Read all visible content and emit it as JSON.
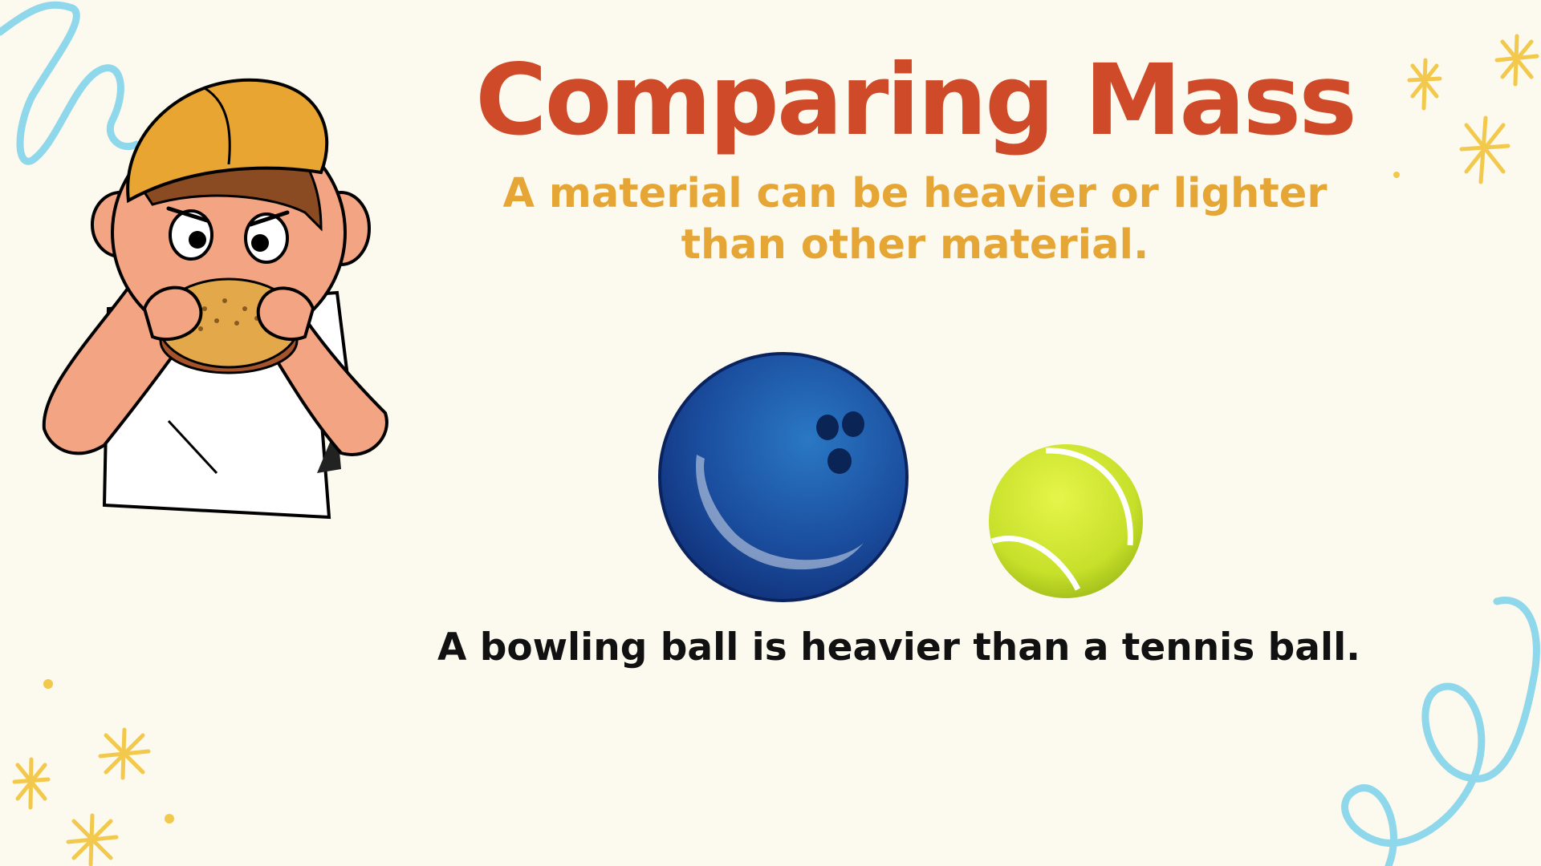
{
  "slide": {
    "title": "Comparing Mass",
    "subtitle": "A material can be heavier or lighter than other material.",
    "caption": "A bowling ball is heavier than a tennis ball."
  },
  "illustrations": {
    "boy": "boy-eating-burger-illustration",
    "bowling_ball": "bowling-ball-icon",
    "tennis_ball": "tennis-ball-icon"
  },
  "colors": {
    "background": "#fcf9ee",
    "title": "#cf4a28",
    "subtitle": "#e6a636",
    "caption": "#111111",
    "squiggle": "#8fd7ea",
    "sparkle": "#f2c94c",
    "bowling_ball": "#1f5aa6",
    "tennis_ball": "#cde63a"
  }
}
